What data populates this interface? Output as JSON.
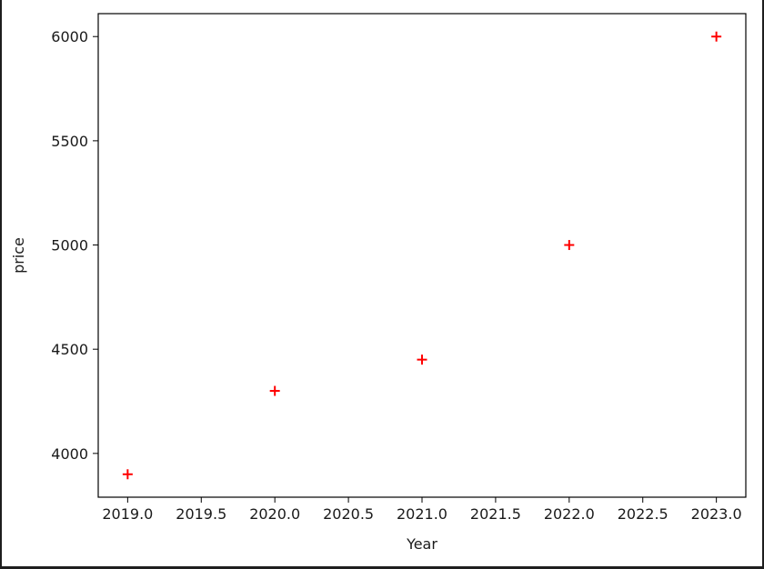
{
  "chart_data": {
    "type": "scatter",
    "title": "",
    "xlabel": "Year",
    "ylabel": "price",
    "x": [
      2019,
      2020,
      2021,
      2022,
      2023
    ],
    "y": [
      3900,
      4300,
      4450,
      5000,
      6000
    ],
    "xlim": [
      2018.8,
      2023.2
    ],
    "ylim": [
      3790,
      6110
    ],
    "x_ticks": [
      2019.0,
      2019.5,
      2020.0,
      2020.5,
      2021.0,
      2021.5,
      2022.0,
      2022.5,
      2023.0
    ],
    "x_tick_labels": [
      "2019.0",
      "2019.5",
      "2020.0",
      "2020.5",
      "2021.0",
      "2021.5",
      "2022.0",
      "2022.5",
      "2023.0"
    ],
    "y_ticks": [
      4000,
      4500,
      5000,
      5500,
      6000
    ],
    "y_tick_labels": [
      "4000",
      "4500",
      "5000",
      "5500",
      "6000"
    ],
    "marker": "+",
    "marker_color": "#ff0000",
    "grid": false,
    "legend": false
  }
}
